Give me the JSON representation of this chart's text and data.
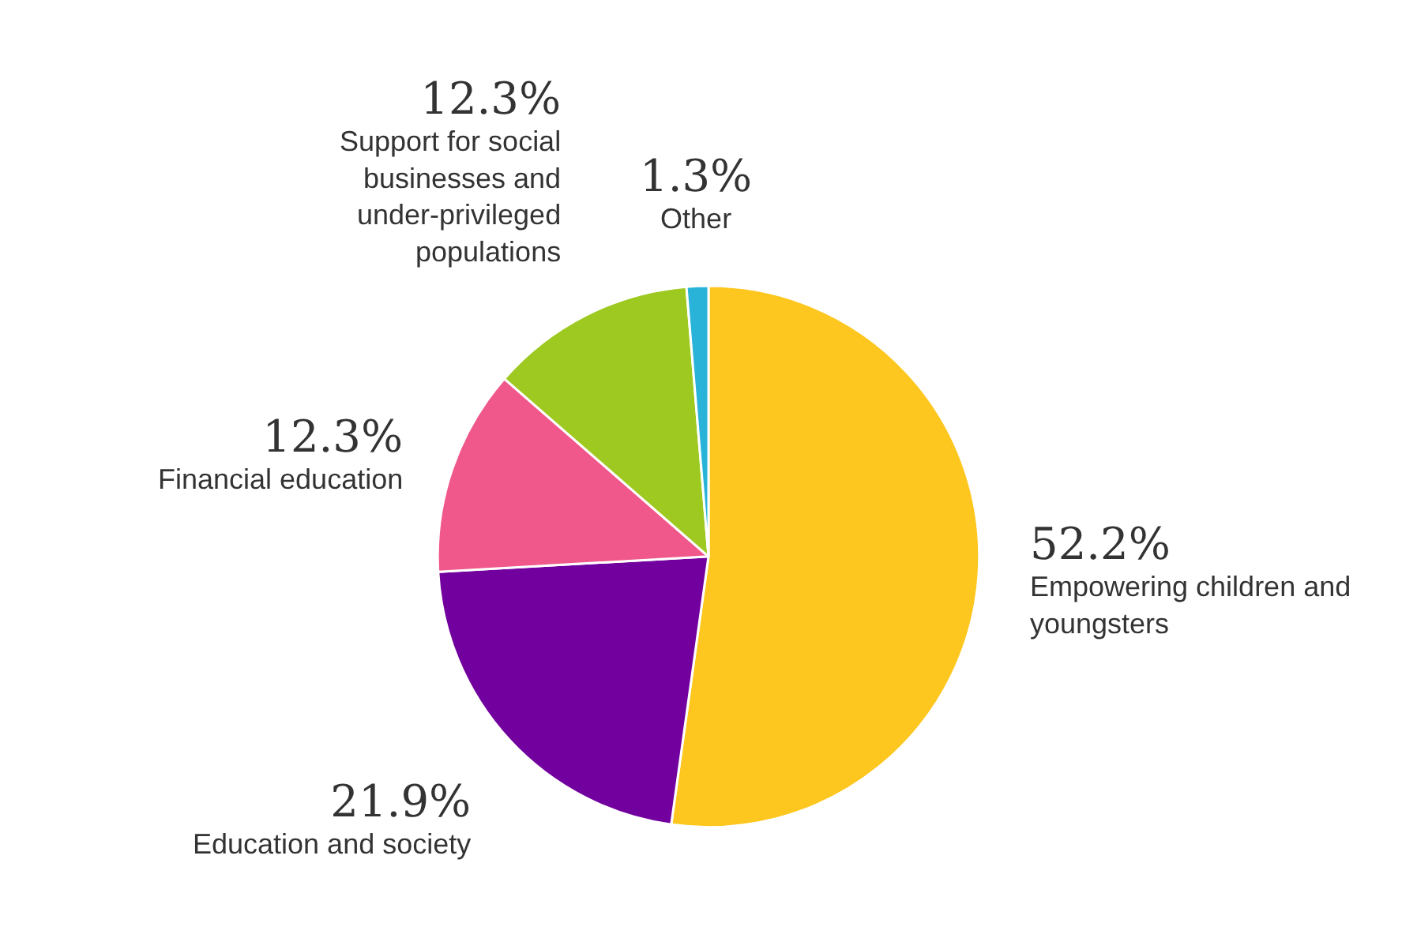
{
  "chart_data": {
    "type": "pie",
    "categories": [
      "Empowering children and youngsters",
      "Education and society",
      "Financial education",
      "Support for social businesses and under-privileged populations",
      "Other"
    ],
    "values": [
      52.2,
      21.9,
      12.3,
      12.3,
      1.3
    ],
    "value_labels": [
      "52.2%",
      "21.9%",
      "12.3%",
      "12.3%",
      "1.3%"
    ],
    "colors": [
      "#fdc71f",
      "#72009e",
      "#f0578a",
      "#9dc920",
      "#29b3d9"
    ],
    "legend": false
  }
}
